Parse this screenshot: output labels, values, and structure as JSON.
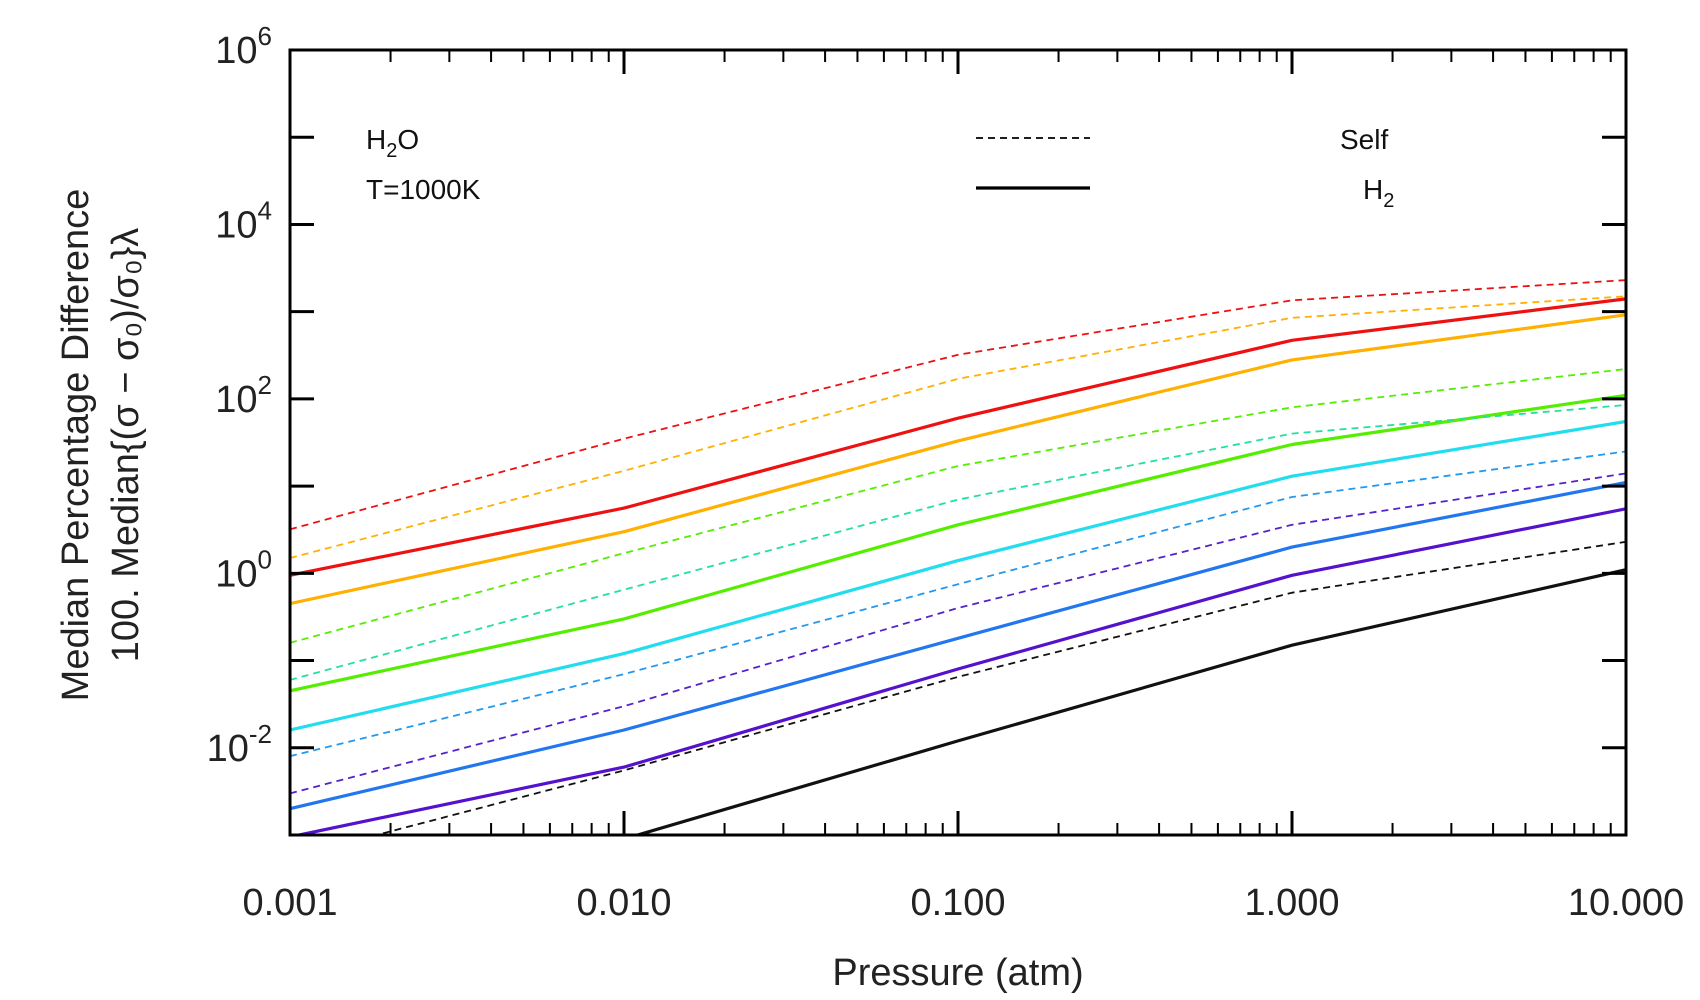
{
  "chart_data": {
    "type": "line",
    "xscale": "log",
    "yscale": "log",
    "xlim": [
      0.001,
      10
    ],
    "ylim": [
      0.001,
      1000000
    ],
    "xlabel": "Pressure (atm)",
    "ylabel_line1": "Median Percentage Difference",
    "ylabel_line2": "100. Median{(σ − σ₀)/σ₀}λ",
    "x_ticks": [
      {
        "value": 0.001,
        "label": "0.001"
      },
      {
        "value": 0.01,
        "label": "0.010"
      },
      {
        "value": 0.1,
        "label": "0.100"
      },
      {
        "value": 1,
        "label": "1.000"
      },
      {
        "value": 10,
        "label": "10.000"
      }
    ],
    "y_ticks": [
      {
        "value": 0.01,
        "base": "10",
        "exp": "-2"
      },
      {
        "value": 1,
        "base": "10",
        "exp": "0"
      },
      {
        "value": 100,
        "base": "10",
        "exp": "2"
      },
      {
        "value": 10000,
        "base": "10",
        "exp": "4"
      },
      {
        "value": 1000000,
        "base": "10",
        "exp": "6"
      }
    ],
    "annotation": {
      "species_main": "H",
      "species_sub": "2",
      "species_tail": "O",
      "temperature": "T=1000K"
    },
    "legend": [
      {
        "style": "dashed",
        "label": "Self",
        "sub": ""
      },
      {
        "style": "solid",
        "label": "H",
        "sub": "2"
      }
    ],
    "x": [
      0.001,
      0.01,
      0.1,
      1,
      10
    ],
    "series": [
      {
        "style": "dashed",
        "color": "#ee1111",
        "values": [
          3.2,
          35,
          320,
          1350,
          2300
        ]
      },
      {
        "style": "solid",
        "color": "#ee1111",
        "values": [
          0.95,
          5.6,
          60,
          470,
          1400
        ]
      },
      {
        "style": "dashed",
        "color": "#ffb000",
        "values": [
          1.5,
          15,
          170,
          850,
          1500
        ]
      },
      {
        "style": "solid",
        "color": "#ffb000",
        "values": [
          0.45,
          3.0,
          33,
          280,
          920
        ]
      },
      {
        "style": "dashed",
        "color": "#55ee00",
        "values": [
          0.16,
          1.7,
          17,
          80,
          220
        ]
      },
      {
        "style": "solid",
        "color": "#55ee00",
        "values": [
          0.045,
          0.3,
          3.6,
          30,
          110
        ]
      },
      {
        "style": "dashed",
        "color": "#22e0a0",
        "values": [
          0.06,
          0.65,
          7,
          40,
          85
        ]
      },
      {
        "style": "solid",
        "color": "#22ddee",
        "values": [
          0.016,
          0.12,
          1.4,
          13,
          55
        ]
      },
      {
        "style": "dashed",
        "color": "#2299ee",
        "values": [
          0.008,
          0.07,
          0.75,
          7.5,
          25
        ]
      },
      {
        "style": "solid",
        "color": "#2277ee",
        "values": [
          0.002,
          0.016,
          0.18,
          2.0,
          11
        ]
      },
      {
        "style": "dashed",
        "color": "#5522cc",
        "values": [
          0.003,
          0.03,
          0.4,
          3.6,
          14
        ]
      },
      {
        "style": "solid",
        "color": "#5511cc",
        "values": [
          0.00095,
          0.006,
          0.08,
          0.95,
          5.5
        ]
      },
      {
        "style": "dashed",
        "color": "#111111",
        "values": [
          0.00055,
          0.0055,
          0.065,
          0.6,
          2.3
        ]
      },
      {
        "style": "solid",
        "color": "#111111",
        "values": [
          0.0001,
          0.0009,
          0.012,
          0.15,
          1.1
        ]
      }
    ]
  }
}
